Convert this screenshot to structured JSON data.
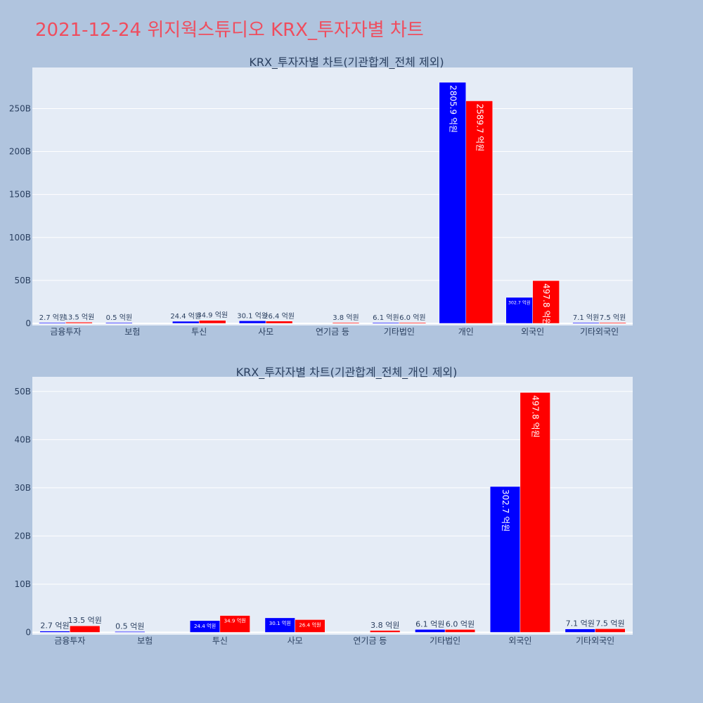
{
  "page_title": "2021-12-24 위지웍스튜디오 KRX_투자자별 차트",
  "colors": {
    "buy": "#0000ff",
    "sell": "#ff0000",
    "plot_bg": "#e5ecf6",
    "page_bg": "#b0c4de",
    "title": "#ef4d5e",
    "text": "#2a3f5f"
  },
  "chart_data": [
    {
      "type": "bar",
      "title": "KRX_투자자별 차트(기관합계_전체 제외)",
      "categories": [
        "금융투자",
        "보험",
        "투신",
        "사모",
        "연기금 등",
        "기타법인",
        "개인",
        "외국인",
        "기타외국인"
      ],
      "series": [
        {
          "values": [
            2.7,
            0.5,
            24.4,
            30.1,
            0,
            6.1,
            2805.9,
            302.7,
            7.1
          ],
          "labels": [
            "2.7 억원",
            "0.5 억원",
            "24.4 억원",
            "30.1 억원",
            "",
            "6.1 억원",
            "2805.9 억원",
            "302.7 억원",
            "7.1 억원"
          ]
        },
        {
          "values": [
            13.5,
            0,
            34.9,
            26.4,
            3.8,
            6.0,
            2589.7,
            497.8,
            7.5
          ],
          "labels": [
            "13.5 억원",
            "",
            "34.9 억원",
            "26.4 억원",
            "3.8 억원",
            "6.0 억원",
            "2589.7 억원",
            "497.8 억원",
            "7.5 억원"
          ]
        }
      ],
      "yticks": [
        "0",
        "50B",
        "100B",
        "150B",
        "200B",
        "250B"
      ],
      "ylim": [
        0,
        2950
      ],
      "grid": true
    },
    {
      "type": "bar",
      "title": "KRX_투자자별 차트(기관합계_전체_개인 제외)",
      "categories": [
        "금융투자",
        "보험",
        "투신",
        "사모",
        "연기금 등",
        "기타법인",
        "외국인",
        "기타외국인"
      ],
      "series": [
        {
          "values": [
            2.7,
            0.5,
            24.4,
            30.1,
            0,
            6.1,
            302.7,
            7.1
          ],
          "labels": [
            "2.7 억원",
            "0.5 억원",
            "24.4 억원",
            "30.1 억원",
            "",
            "6.1 억원",
            "302.7 억원",
            "7.1 억원"
          ]
        },
        {
          "values": [
            13.5,
            0,
            34.9,
            26.4,
            3.8,
            6.0,
            497.8,
            7.5
          ],
          "labels": [
            "13.5 억원",
            "",
            "34.9 억원",
            "26.4 억원",
            "3.8 억원",
            "6.0 억원",
            "497.8 억원",
            "7.5 억원"
          ]
        }
      ],
      "yticks": [
        "0",
        "10B",
        "20B",
        "30B",
        "40B",
        "50B"
      ],
      "ylim": [
        0,
        529
      ],
      "grid": true
    }
  ]
}
